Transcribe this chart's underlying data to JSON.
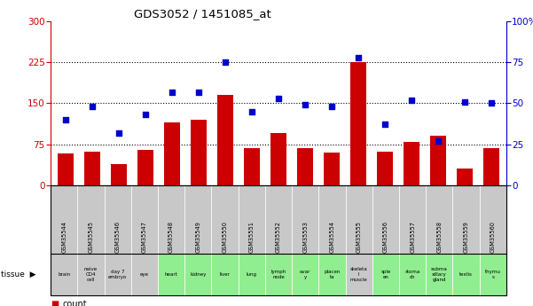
{
  "title": "GDS3052 / 1451085_at",
  "gsm_labels": [
    "GSM35544",
    "GSM35545",
    "GSM35546",
    "GSM35547",
    "GSM35548",
    "GSM35549",
    "GSM35550",
    "GSM35551",
    "GSM35552",
    "GSM35553",
    "GSM35554",
    "GSM35555",
    "GSM35556",
    "GSM35557",
    "GSM35558",
    "GSM35559",
    "GSM35560"
  ],
  "tissue_labels": [
    "brain",
    "naive\nCD4\ncell",
    "day 7\nembryо",
    "eye",
    "heart",
    "kidney",
    "liver",
    "lung",
    "lymph\nnode",
    "ovar\ny",
    "placen\nta",
    "skeleta\nl\nmuscle",
    "sple\nen",
    "stoma\nch",
    "subma\nxillary\ngland",
    "testis",
    "thymu\ns"
  ],
  "tissue_colors": [
    "#c8c8c8",
    "#c8c8c8",
    "#c8c8c8",
    "#c8c8c8",
    "#90ee90",
    "#90ee90",
    "#90ee90",
    "#90ee90",
    "#90ee90",
    "#90ee90",
    "#90ee90",
    "#c8c8c8",
    "#90ee90",
    "#90ee90",
    "#90ee90",
    "#90ee90",
    "#90ee90"
  ],
  "gsm_bg_color": "#c8c8c8",
  "counts": [
    58,
    62,
    38,
    65,
    115,
    120,
    165,
    68,
    95,
    68,
    60,
    225,
    62,
    80,
    90,
    30,
    68
  ],
  "percentiles": [
    40,
    48,
    32,
    43,
    57,
    57,
    75,
    45,
    53,
    49,
    48,
    78,
    37,
    52,
    27,
    51,
    50
  ],
  "bar_color": "#cc0000",
  "dot_color": "#0000cc",
  "ylim_left": [
    0,
    300
  ],
  "ylim_right": [
    0,
    100
  ],
  "yticks_left": [
    0,
    75,
    150,
    225,
    300
  ],
  "yticks_right": [
    0,
    25,
    50,
    75,
    100
  ],
  "hlines": [
    75,
    150,
    225
  ],
  "background_color": "#ffffff"
}
